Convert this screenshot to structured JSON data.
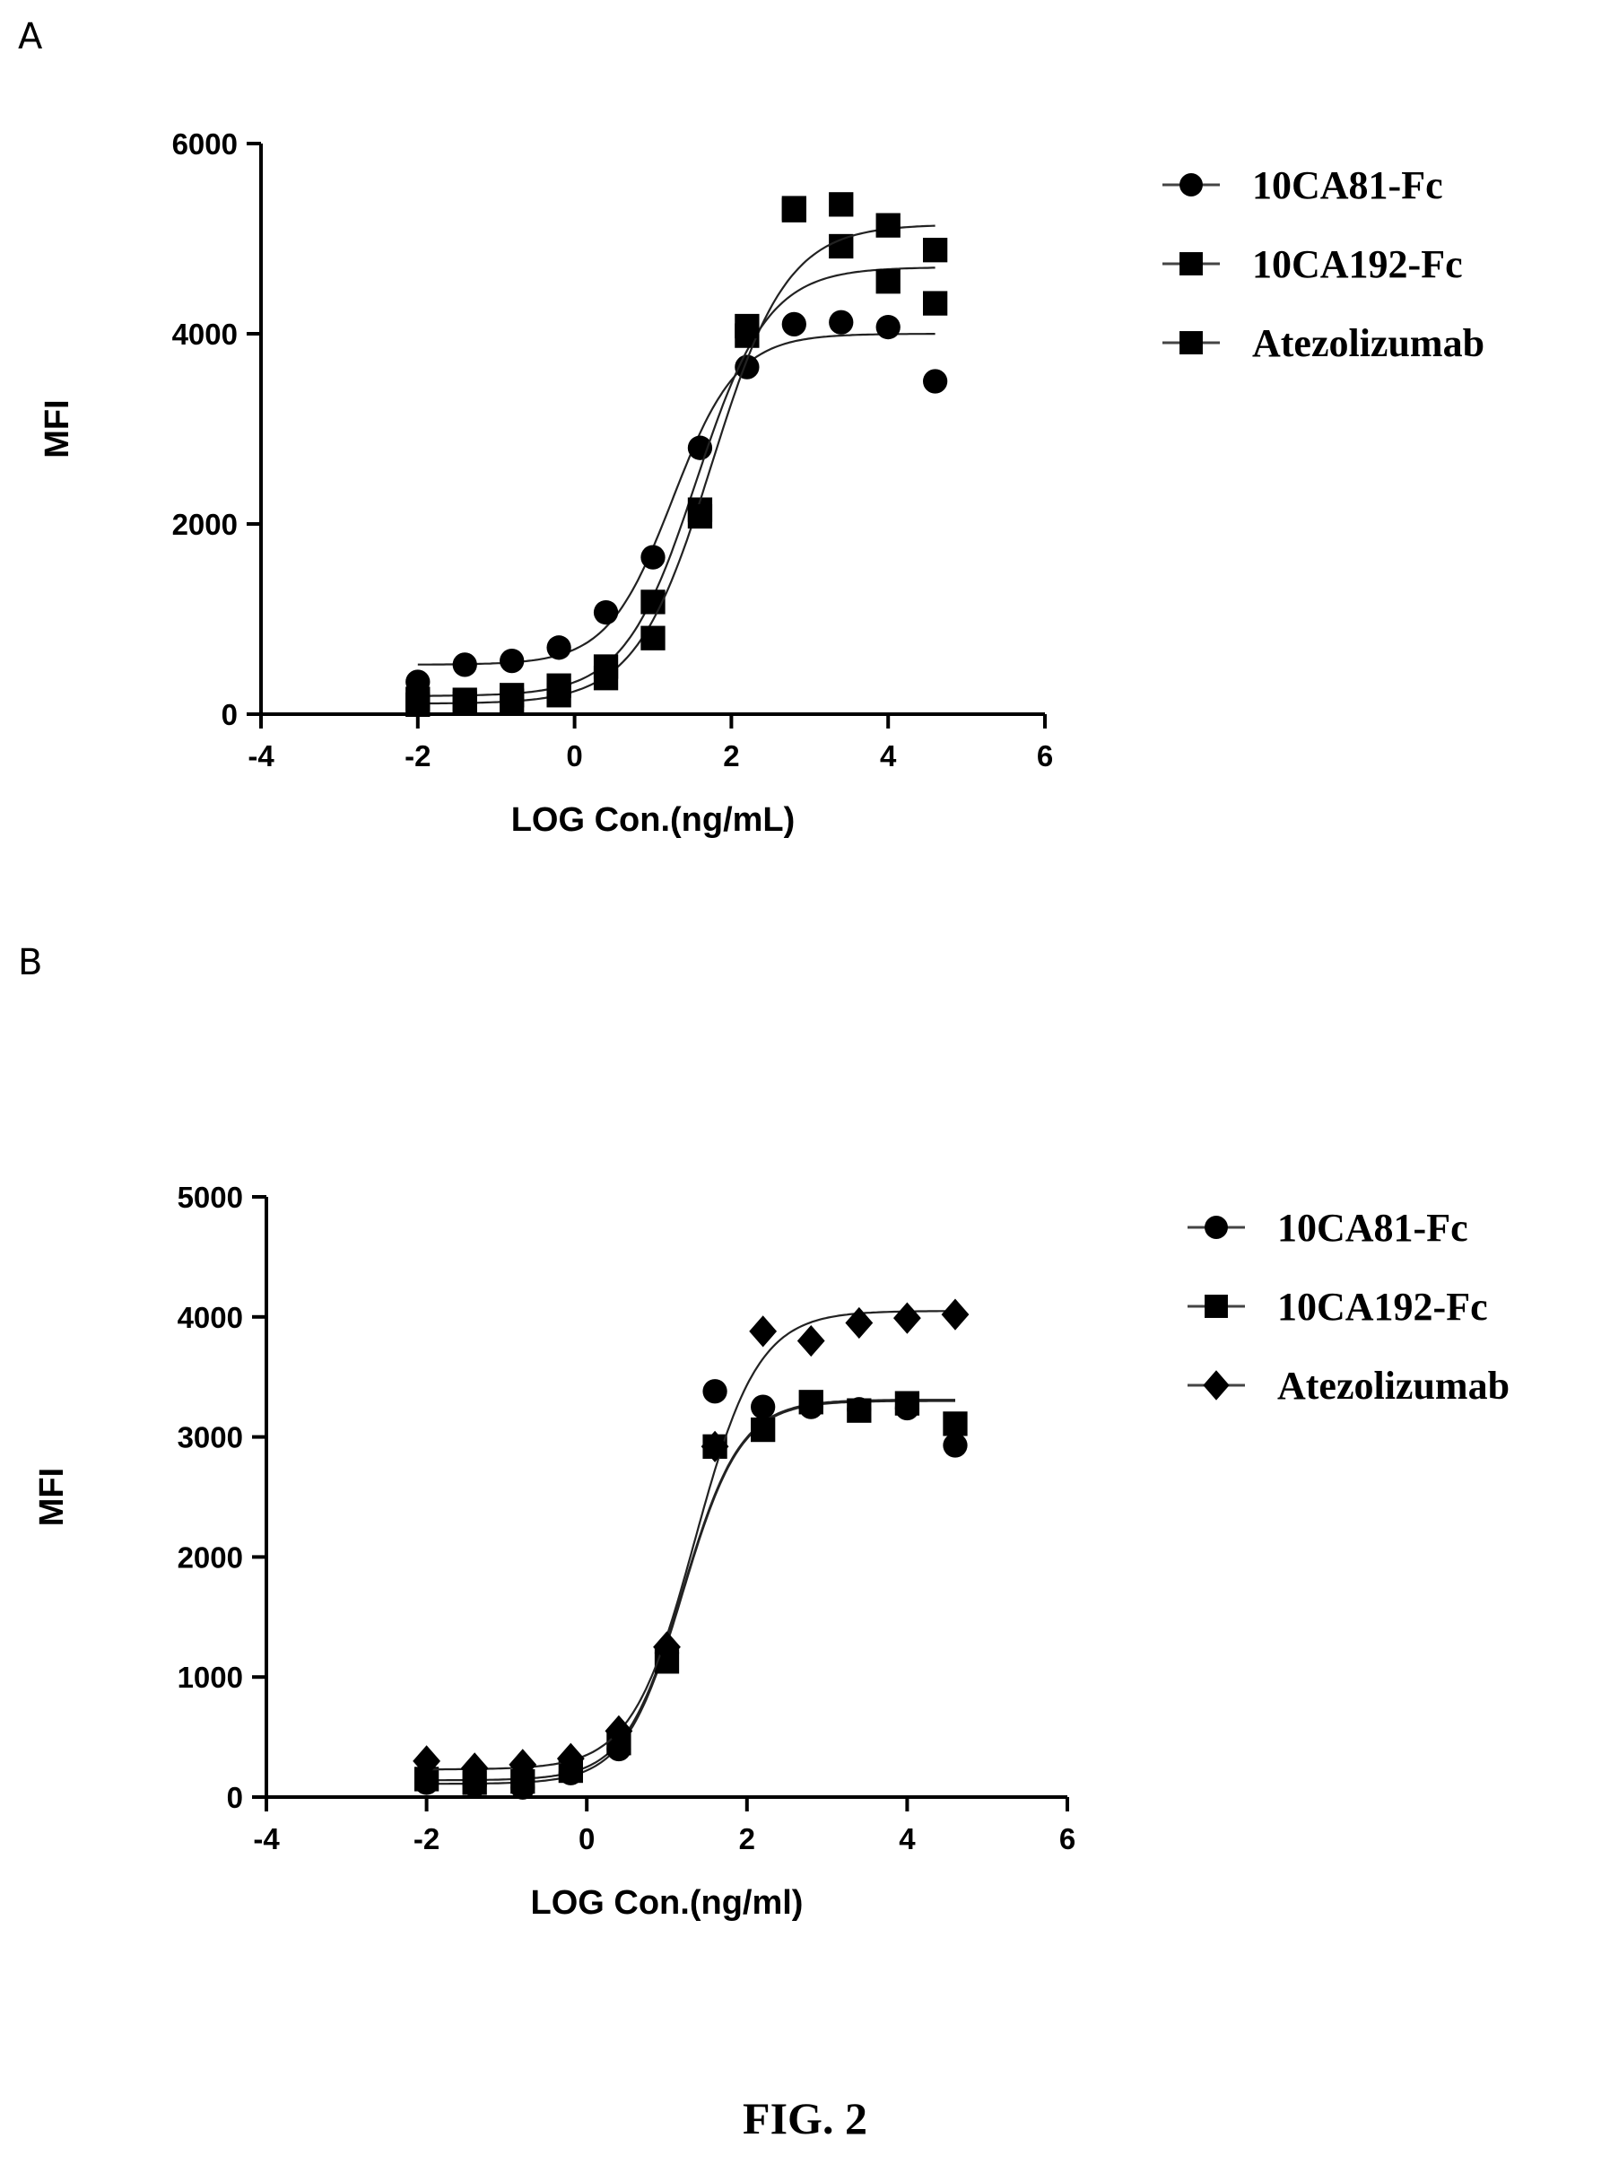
{
  "panel_labels": [
    "A",
    "B"
  ],
  "figure_caption": "FIG. 2",
  "chart_data": [
    {
      "panel": "A",
      "type": "scatter",
      "xlabel": "LOG Con.(ng/mL)",
      "ylabel": "MFI",
      "xlim": [
        -4,
        6
      ],
      "ylim": [
        0,
        6000
      ],
      "xticks": [
        -4,
        -2,
        0,
        2,
        4,
        6
      ],
      "yticks": [
        0,
        2000,
        4000,
        6000
      ],
      "legend_position": "right",
      "series": [
        {
          "name": "10CA81-Fc",
          "marker": "circle",
          "x": [
            -2.0,
            -1.4,
            -0.8,
            -0.2,
            0.4,
            1.0,
            1.6,
            2.2,
            2.8,
            3.4,
            4.0,
            4.6
          ],
          "y": [
            340,
            520,
            560,
            700,
            1070,
            1650,
            2800,
            3650,
            4100,
            4120,
            4070,
            3500
          ],
          "fit": {
            "bottom": 520,
            "top": 4000,
            "logEC50": 1.25,
            "hill": 1.05
          }
        },
        {
          "name": "10CA192-Fc",
          "marker": "square",
          "x": [
            -2.0,
            -1.4,
            -0.8,
            -0.2,
            0.4,
            1.0,
            1.6,
            2.2,
            2.8,
            3.4,
            4.0,
            4.6
          ],
          "y": [
            160,
            150,
            200,
            300,
            500,
            1180,
            2150,
            3980,
            5300,
            4920,
            4550,
            4320
          ],
          "fit": {
            "bottom": 190,
            "top": 4700,
            "logEC50": 1.55,
            "hill": 0.95
          }
        },
        {
          "name": "Atezolizumab",
          "marker": "square",
          "x": [
            -2.0,
            -1.4,
            -0.8,
            -0.2,
            0.4,
            1.0,
            1.6,
            2.2,
            2.8,
            3.4,
            4.0,
            4.6
          ],
          "y": [
            100,
            110,
            140,
            200,
            380,
            800,
            2080,
            4080,
            5320,
            5360,
            5140,
            4880
          ],
          "fit": {
            "bottom": 110,
            "top": 5150,
            "logEC50": 1.75,
            "hill": 0.9
          }
        }
      ]
    },
    {
      "panel": "B",
      "type": "scatter",
      "xlabel": "LOG Con.(ng/ml)",
      "ylabel": "MFI",
      "xlim": [
        -4,
        6
      ],
      "ylim": [
        0,
        5000
      ],
      "xticks": [
        -4,
        -2,
        0,
        2,
        4,
        6
      ],
      "yticks": [
        0,
        1000,
        2000,
        3000,
        4000,
        5000
      ],
      "legend_position": "right",
      "series": [
        {
          "name": "10CA81-Fc",
          "marker": "circle",
          "x": [
            -2.0,
            -1.4,
            -0.8,
            -0.2,
            0.4,
            1.0,
            1.6,
            2.2,
            2.8,
            3.4,
            4.0,
            4.6
          ],
          "y": [
            120,
            100,
            80,
            200,
            400,
            1200,
            3380,
            3250,
            3250,
            3230,
            3240,
            2930
          ],
          "fit": {
            "bottom": 110,
            "top": 3300,
            "logEC50": 1.2,
            "hill": 1.2
          }
        },
        {
          "name": "10CA192-Fc",
          "marker": "square",
          "x": [
            -2.0,
            -1.4,
            -0.8,
            -0.2,
            0.4,
            1.0,
            1.6,
            2.2,
            2.8,
            3.4,
            4.0,
            4.6
          ],
          "y": [
            150,
            120,
            130,
            220,
            450,
            1130,
            2920,
            3060,
            3290,
            3220,
            3280,
            3110
          ],
          "fit": {
            "bottom": 140,
            "top": 3310,
            "logEC50": 1.2,
            "hill": 1.2
          }
        },
        {
          "name": "Atezolizumab",
          "marker": "diamond",
          "x": [
            -2.0,
            -1.4,
            -0.8,
            -0.2,
            0.4,
            1.0,
            1.6,
            2.2,
            2.8,
            3.4,
            4.0,
            4.6
          ],
          "y": [
            300,
            240,
            270,
            320,
            550,
            1250,
            2920,
            3880,
            3800,
            3950,
            3990,
            4020
          ],
          "fit": {
            "bottom": 230,
            "top": 4050,
            "logEC50": 1.35,
            "hill": 1.1
          }
        }
      ]
    }
  ]
}
